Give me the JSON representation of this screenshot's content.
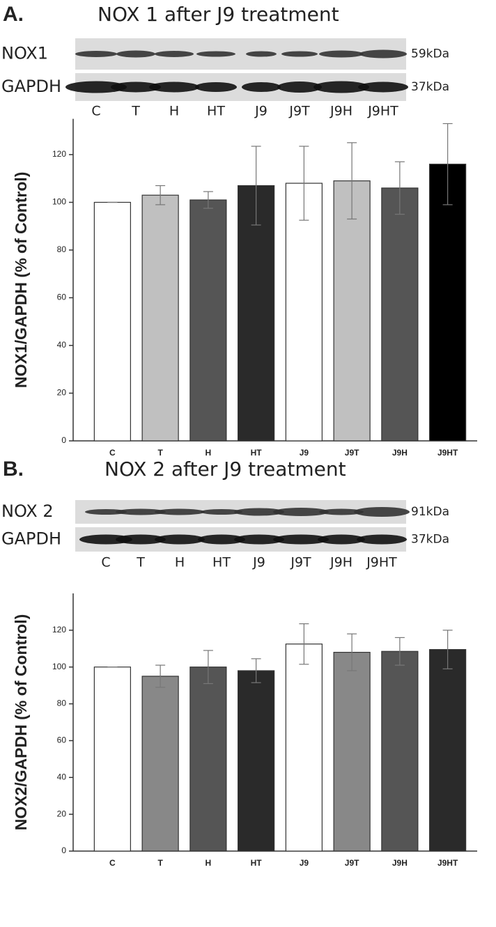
{
  "chart_data": [
    {
      "type": "bar",
      "panel_label": "A.",
      "title": "NOX 1 after J9 treatment",
      "blot": {
        "rows": [
          {
            "label": "NOX1",
            "size": "59kDa"
          },
          {
            "label": "GAPDH",
            "size": "37kDa"
          }
        ],
        "lanes": [
          "C",
          "T",
          "H",
          "HT",
          "J9",
          "J9T",
          "J9H",
          "J9HT"
        ]
      },
      "ylabel": "NOX1/GAPDH  (% of Control)",
      "categories": [
        "C",
        "T",
        "H",
        "HT",
        "J9",
        "J9T",
        "J9H",
        "J9HT"
      ],
      "values": [
        100,
        103,
        101,
        107,
        108,
        109,
        106,
        116
      ],
      "errors": [
        0,
        4,
        3.5,
        16.5,
        15.5,
        16,
        11,
        17
      ],
      "colors": [
        "#ffffff",
        "#c0c0c0",
        "#555555",
        "#2a2a2a",
        "#ffffff",
        "#c0c0c0",
        "#555555",
        "#000000"
      ],
      "ylim": [
        0,
        135
      ],
      "yticks": [
        0,
        20,
        40,
        60,
        80,
        100,
        120
      ]
    },
    {
      "type": "bar",
      "panel_label": "B.",
      "title": "NOX 2 after J9 treatment",
      "blot": {
        "rows": [
          {
            "label": "NOX 2",
            "size": "91kDa"
          },
          {
            "label": "GAPDH",
            "size": "37kDa"
          }
        ],
        "lanes": [
          "C",
          "T",
          "H",
          "HT",
          "J9",
          "J9T",
          "J9H",
          "J9HT"
        ]
      },
      "ylabel": "NOX2/GAPDH  (% of Control)",
      "categories": [
        "C",
        "T",
        "H",
        "HT",
        "J9",
        "J9T",
        "J9H",
        "J9HT"
      ],
      "values": [
        100,
        95,
        100,
        98,
        112.5,
        108,
        108.5,
        109.5
      ],
      "errors": [
        0,
        6,
        9,
        6.5,
        11,
        10,
        7.5,
        10.5
      ],
      "colors": [
        "#ffffff",
        "#888888",
        "#555555",
        "#2a2a2a",
        "#ffffff",
        "#888888",
        "#555555",
        "#2a2a2a"
      ],
      "ylim": [
        0,
        140
      ],
      "yticks": [
        0,
        20,
        40,
        60,
        80,
        100,
        120
      ]
    }
  ]
}
